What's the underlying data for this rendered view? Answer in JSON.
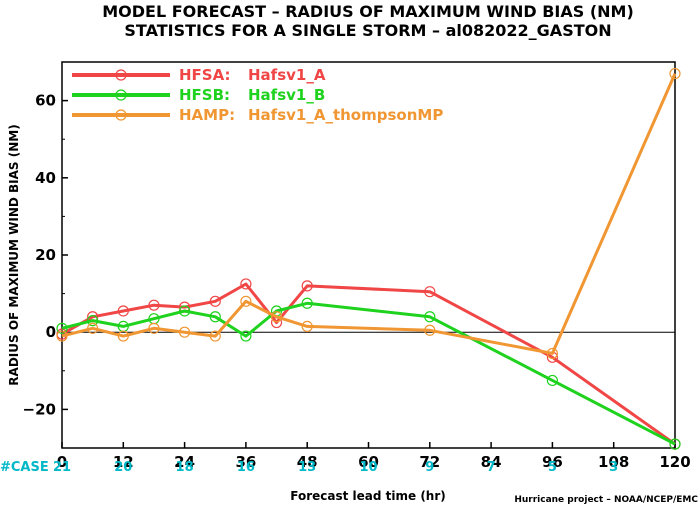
{
  "title_line1": "MODEL FORECAST – RADIUS OF MAXIMUM WIND BIAS (NM)",
  "title_line2": "STATISTICS FOR A SINGLE STORM – al082022_GASTON",
  "case_label": "#CASE",
  "footer": "Hurricane project – NOAA/NCEP/EMC",
  "chart_data": {
    "type": "line",
    "xlabel": "Forecast lead time (hr)",
    "ylabel": "RADIUS OF MAXIMUM WIND BIAS (NM)",
    "xlim": [
      0,
      120
    ],
    "ylim": [
      -30,
      70
    ],
    "xticks": [
      0,
      12,
      24,
      36,
      48,
      60,
      72,
      84,
      96,
      108,
      120
    ],
    "yticks": [
      -20,
      0,
      20,
      40,
      60
    ],
    "zero_line": true,
    "legend_placement": "top-left",
    "series": [
      {
        "name": "HFSA:",
        "label": "Hafsv1_A",
        "color": "#f04646",
        "x": [
          0,
          6,
          12,
          18,
          24,
          30,
          36,
          42,
          48,
          72,
          96,
          120
        ],
        "y": [
          -0.5,
          4,
          5.5,
          7,
          6.5,
          8,
          12.5,
          2.5,
          12,
          10.5,
          -6.5,
          -29
        ]
      },
      {
        "name": "HFSB:",
        "label": "Hafsv1_B",
        "color": "#1ed21e",
        "x": [
          0,
          6,
          12,
          18,
          24,
          30,
          36,
          42,
          48,
          72,
          96,
          120
        ],
        "y": [
          1,
          3,
          1.5,
          3.5,
          5.5,
          4,
          -1,
          5.5,
          7.5,
          4,
          -12.5,
          -29
        ]
      },
      {
        "name": "HAMP:",
        "label": "Hafsv1_A_thompsonMP",
        "color": "#f09632",
        "x": [
          0,
          6,
          12,
          18,
          24,
          30,
          36,
          42,
          48,
          72,
          96,
          120
        ],
        "y": [
          -1,
          1,
          -1,
          1,
          0,
          -1,
          8,
          4,
          1.5,
          0.5,
          -5.5,
          67
        ]
      }
    ],
    "cases": {
      "x": [
        0,
        12,
        24,
        36,
        48,
        60,
        72,
        84,
        96,
        108,
        120
      ],
      "values": [
        21,
        20,
        18,
        16,
        13,
        10,
        9,
        7,
        5,
        3,
        ""
      ]
    }
  }
}
